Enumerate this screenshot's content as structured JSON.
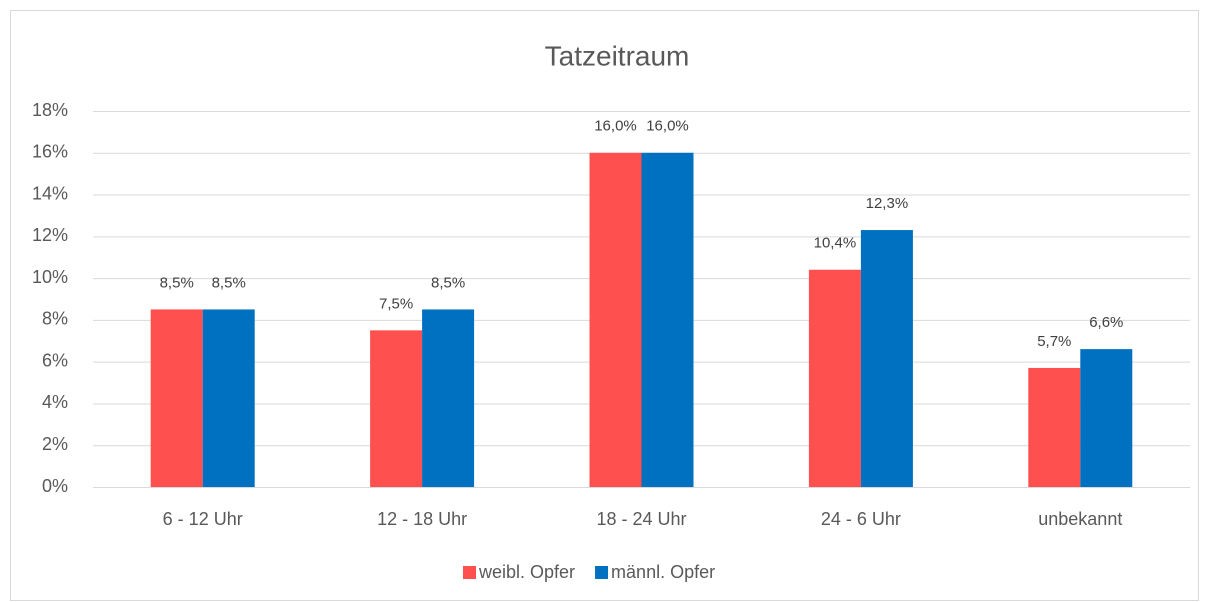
{
  "chart_data": {
    "type": "bar",
    "title": "Tatzeitraum",
    "categories": [
      "6 - 12 Uhr",
      "12 - 18 Uhr",
      "18 - 24 Uhr",
      "24 - 6 Uhr",
      "unbekannt"
    ],
    "series": [
      {
        "name": "weibl. Opfer",
        "color": "#ff5050",
        "values": [
          8.5,
          7.5,
          16.0,
          10.4,
          5.7
        ],
        "value_labels": [
          "8,5%",
          "7,5%",
          "16,0%",
          "10,4%",
          "5,7%"
        ]
      },
      {
        "name": "männl. Opfer",
        "color": "#0070c0",
        "values": [
          8.5,
          8.5,
          16.0,
          12.3,
          6.6
        ],
        "value_labels": [
          "8,5%",
          "8,5%",
          "16,0%",
          "12,3%",
          "6,6%"
        ]
      }
    ],
    "ylim": [
      0,
      18
    ],
    "yticks": [
      {
        "value": 0,
        "label": "0%"
      },
      {
        "value": 2,
        "label": "2%"
      },
      {
        "value": 4,
        "label": "4%"
      },
      {
        "value": 6,
        "label": "6%"
      },
      {
        "value": 8,
        "label": "8%"
      },
      {
        "value": 10,
        "label": "10%"
      },
      {
        "value": 12,
        "label": "12%"
      },
      {
        "value": 14,
        "label": "14%"
      },
      {
        "value": 16,
        "label": "16%"
      },
      {
        "value": 18,
        "label": "18%"
      }
    ],
    "grid": true,
    "legend": "bottom"
  }
}
